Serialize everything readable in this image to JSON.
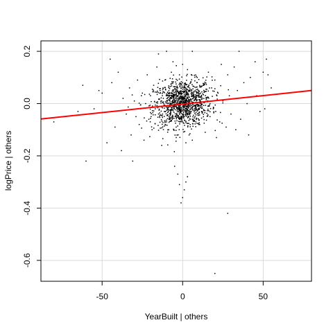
{
  "chart_data": {
    "type": "scatter",
    "title": "",
    "xlabel": "YearBuilt | others",
    "ylabel": "logPrice | others",
    "xlim": [
      -88,
      80
    ],
    "ylim": [
      -0.68,
      0.24
    ],
    "x_ticks": [
      -50,
      0,
      50
    ],
    "x_tick_labels": [
      "-50",
      "0",
      "50"
    ],
    "y_ticks": [
      -0.6,
      -0.4,
      -0.2,
      0.0,
      0.2
    ],
    "y_tick_labels": [
      "-0.6",
      "-0.4",
      "-0.2",
      "0.0",
      "0.2"
    ],
    "grid": true,
    "legend": "none",
    "colors": {
      "points": "#000000",
      "fit_line": "#ff0000",
      "grid": "#d9d9d9"
    },
    "series": [
      {
        "kind": "points",
        "points": [
          [
            -62,
            0.07
          ],
          [
            -60,
            -0.22
          ],
          [
            -52,
            0.05
          ],
          [
            -50,
            0.04
          ],
          [
            -47,
            -0.15
          ],
          [
            -45,
            0.17
          ],
          [
            -44,
            0.08
          ],
          [
            -43,
            -0.03
          ],
          [
            -42,
            -0.09
          ],
          [
            -40,
            0.12
          ],
          [
            -38,
            -0.18
          ],
          [
            -37,
            0.02
          ],
          [
            -35,
            -0.04
          ],
          [
            -33,
            0.06
          ],
          [
            -32,
            -0.12
          ],
          [
            -31,
            -0.22
          ],
          [
            -30,
            0.01
          ],
          [
            -29,
            -0.05
          ],
          [
            -28,
            0.09
          ],
          [
            -27,
            -0.08
          ],
          [
            -26,
            -0.02
          ],
          [
            -25,
            0.04
          ],
          [
            -24,
            -0.14
          ],
          [
            -23,
            0.0
          ],
          [
            -22,
            0.11
          ],
          [
            -21,
            -0.06
          ],
          [
            -20,
            0.03
          ],
          [
            -19,
            -0.1
          ],
          [
            -18,
            0.07
          ],
          [
            -17,
            -0.02
          ],
          [
            -16,
            0.14
          ],
          [
            -15,
            -0.04
          ],
          [
            -14,
            0.05
          ],
          [
            -13,
            -0.16
          ],
          [
            -12,
            0.02
          ],
          [
            -11,
            0.09
          ],
          [
            -10,
            -0.07
          ],
          [
            -9,
            0.04
          ],
          [
            -8,
            -0.01
          ],
          [
            -7,
            0.12
          ],
          [
            -6,
            -0.05
          ],
          [
            -5,
            0.03
          ],
          [
            -4,
            -0.09
          ],
          [
            -3,
            0.06
          ],
          [
            -2,
            0.0
          ],
          [
            -1,
            -0.03
          ],
          [
            0,
            0.02
          ],
          [
            1,
            -0.01
          ],
          [
            2,
            0.05
          ],
          [
            3,
            -0.04
          ],
          [
            4,
            0.01
          ],
          [
            5,
            0.08
          ],
          [
            6,
            -0.06
          ],
          [
            7,
            0.03
          ],
          [
            8,
            -0.02
          ],
          [
            9,
            0.1
          ],
          [
            10,
            -0.08
          ],
          [
            11,
            0.04
          ],
          [
            12,
            -0.03
          ],
          [
            13,
            0.07
          ],
          [
            14,
            -0.11
          ],
          [
            15,
            0.02
          ],
          [
            16,
            0.12
          ],
          [
            17,
            -0.05
          ],
          [
            18,
            0.06
          ],
          [
            19,
            -0.02
          ],
          [
            20,
            0.09
          ],
          [
            21,
            -0.13
          ],
          [
            22,
            0.04
          ],
          [
            23,
            -0.07
          ],
          [
            24,
            0.15
          ],
          [
            25,
            0.01
          ],
          [
            27,
            -0.09
          ],
          [
            28,
            0.11
          ],
          [
            29,
            0.03
          ],
          [
            30,
            -0.04
          ],
          [
            32,
            0.14
          ],
          [
            33,
            -0.1
          ],
          [
            34,
            0.05
          ],
          [
            35,
            0.2
          ],
          [
            36,
            -0.06
          ],
          [
            38,
            0.08
          ],
          [
            40,
            0.0
          ],
          [
            41,
            -0.12
          ],
          [
            42,
            0.1
          ],
          [
            45,
            0.16
          ],
          [
            46,
            0.03
          ],
          [
            48,
            -0.03
          ],
          [
            50,
            0.12
          ],
          [
            51,
            -0.02
          ],
          [
            52,
            0.17
          ],
          [
            53,
            0.11
          ],
          [
            55,
            0.06
          ],
          [
            -3,
            -0.27
          ],
          [
            -2,
            -0.31
          ],
          [
            0,
            -0.36
          ],
          [
            1,
            -0.33
          ],
          [
            -5,
            -0.24
          ],
          [
            2,
            -0.3
          ],
          [
            -1,
            -0.38
          ],
          [
            3,
            -0.28
          ],
          [
            28,
            -0.42
          ],
          [
            20,
            -0.65
          ],
          [
            -15,
            0.19
          ],
          [
            6,
            0.2
          ],
          [
            -10,
            0.2
          ],
          [
            -55,
            -0.02
          ],
          [
            -80,
            -0.07
          ],
          [
            -65,
            -0.03
          ],
          [
            0,
            0.15
          ],
          [
            2,
            -0.15
          ],
          [
            -2,
            0.11
          ],
          [
            3,
            0.13
          ],
          [
            -4,
            -0.13
          ],
          [
            4,
            -0.12
          ],
          [
            -6,
            0.16
          ],
          [
            6,
            -0.14
          ],
          [
            1,
            0.06
          ],
          [
            -1,
            -0.07
          ],
          [
            0,
            -0.01
          ],
          [
            1,
            0.01
          ],
          [
            -1,
            0.03
          ],
          [
            2,
            -0.02
          ],
          [
            -2,
            0.04
          ],
          [
            0,
            0.08
          ]
        ]
      },
      {
        "kind": "fit_line",
        "name": "",
        "x": [
          -88,
          80
        ],
        "y": [
          -0.059,
          0.05
        ]
      }
    ]
  }
}
